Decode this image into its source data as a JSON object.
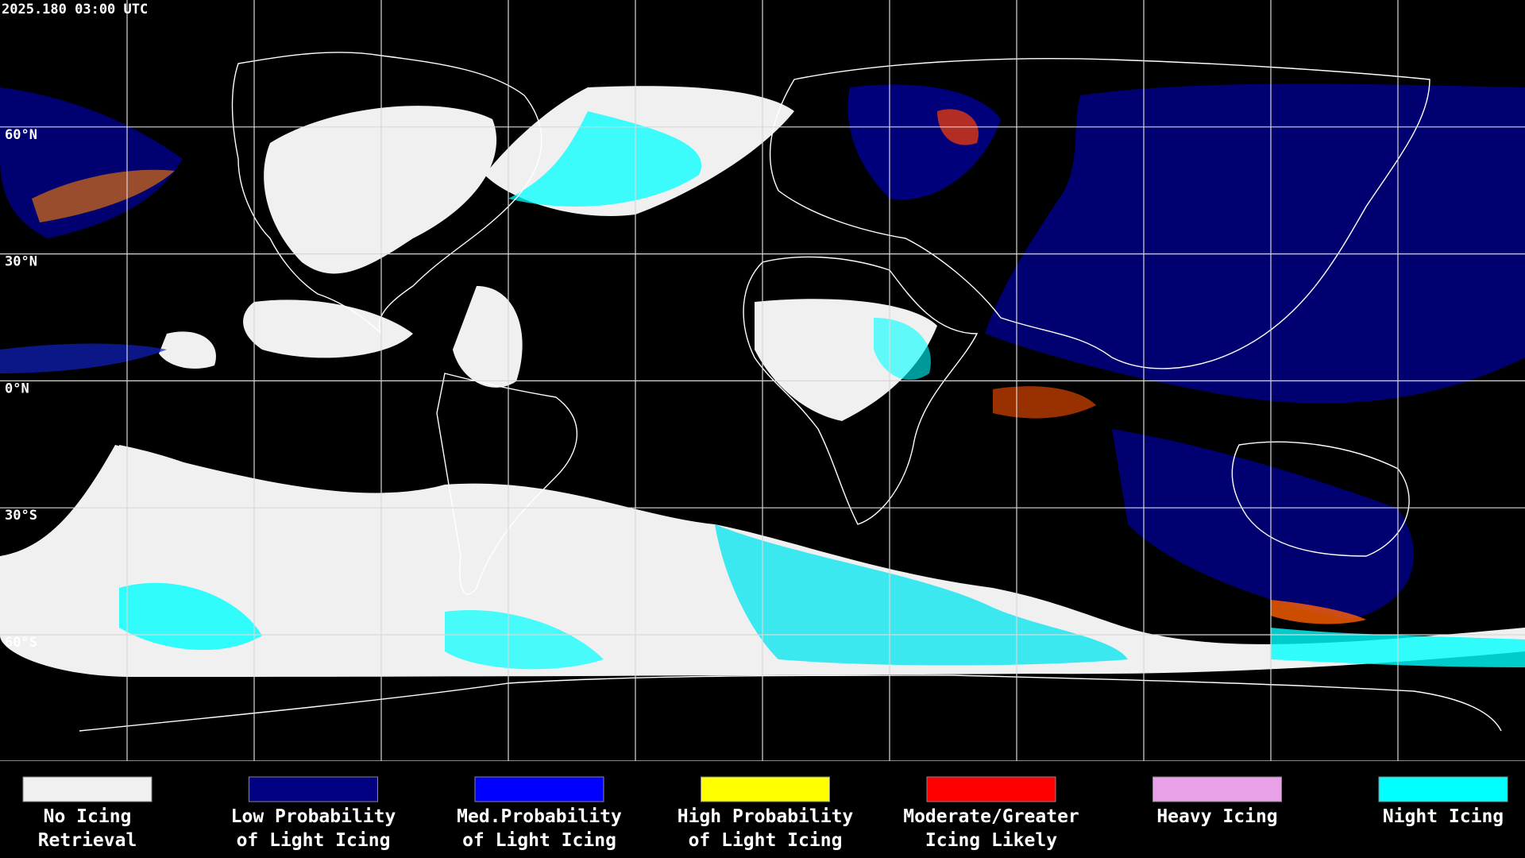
{
  "header": {
    "timestamp": "2025.180 03:00 UTC"
  },
  "latitude_labels": [
    "60°N",
    "30°N",
    "0°N",
    "30°S",
    "60°S"
  ],
  "legend": [
    {
      "lines": [
        "No Icing",
        "Retrieval"
      ],
      "color": "#f0f0f0"
    },
    {
      "lines": [
        "Low Probability",
        "of Light Icing"
      ],
      "color": "#000080"
    },
    {
      "lines": [
        "Med.Probability",
        "of Light Icing"
      ],
      "color": "#0000ff"
    },
    {
      "lines": [
        "High Probability",
        "of Light Icing"
      ],
      "color": "#ffff00"
    },
    {
      "lines": [
        "Moderate/Greater",
        "Icing Likely"
      ],
      "color": "#ff0000"
    },
    {
      "lines": [
        "Heavy Icing"
      ],
      "color": "#e8a0e8"
    },
    {
      "lines": [
        "Night Icing"
      ],
      "color": "#00ffff"
    }
  ]
}
